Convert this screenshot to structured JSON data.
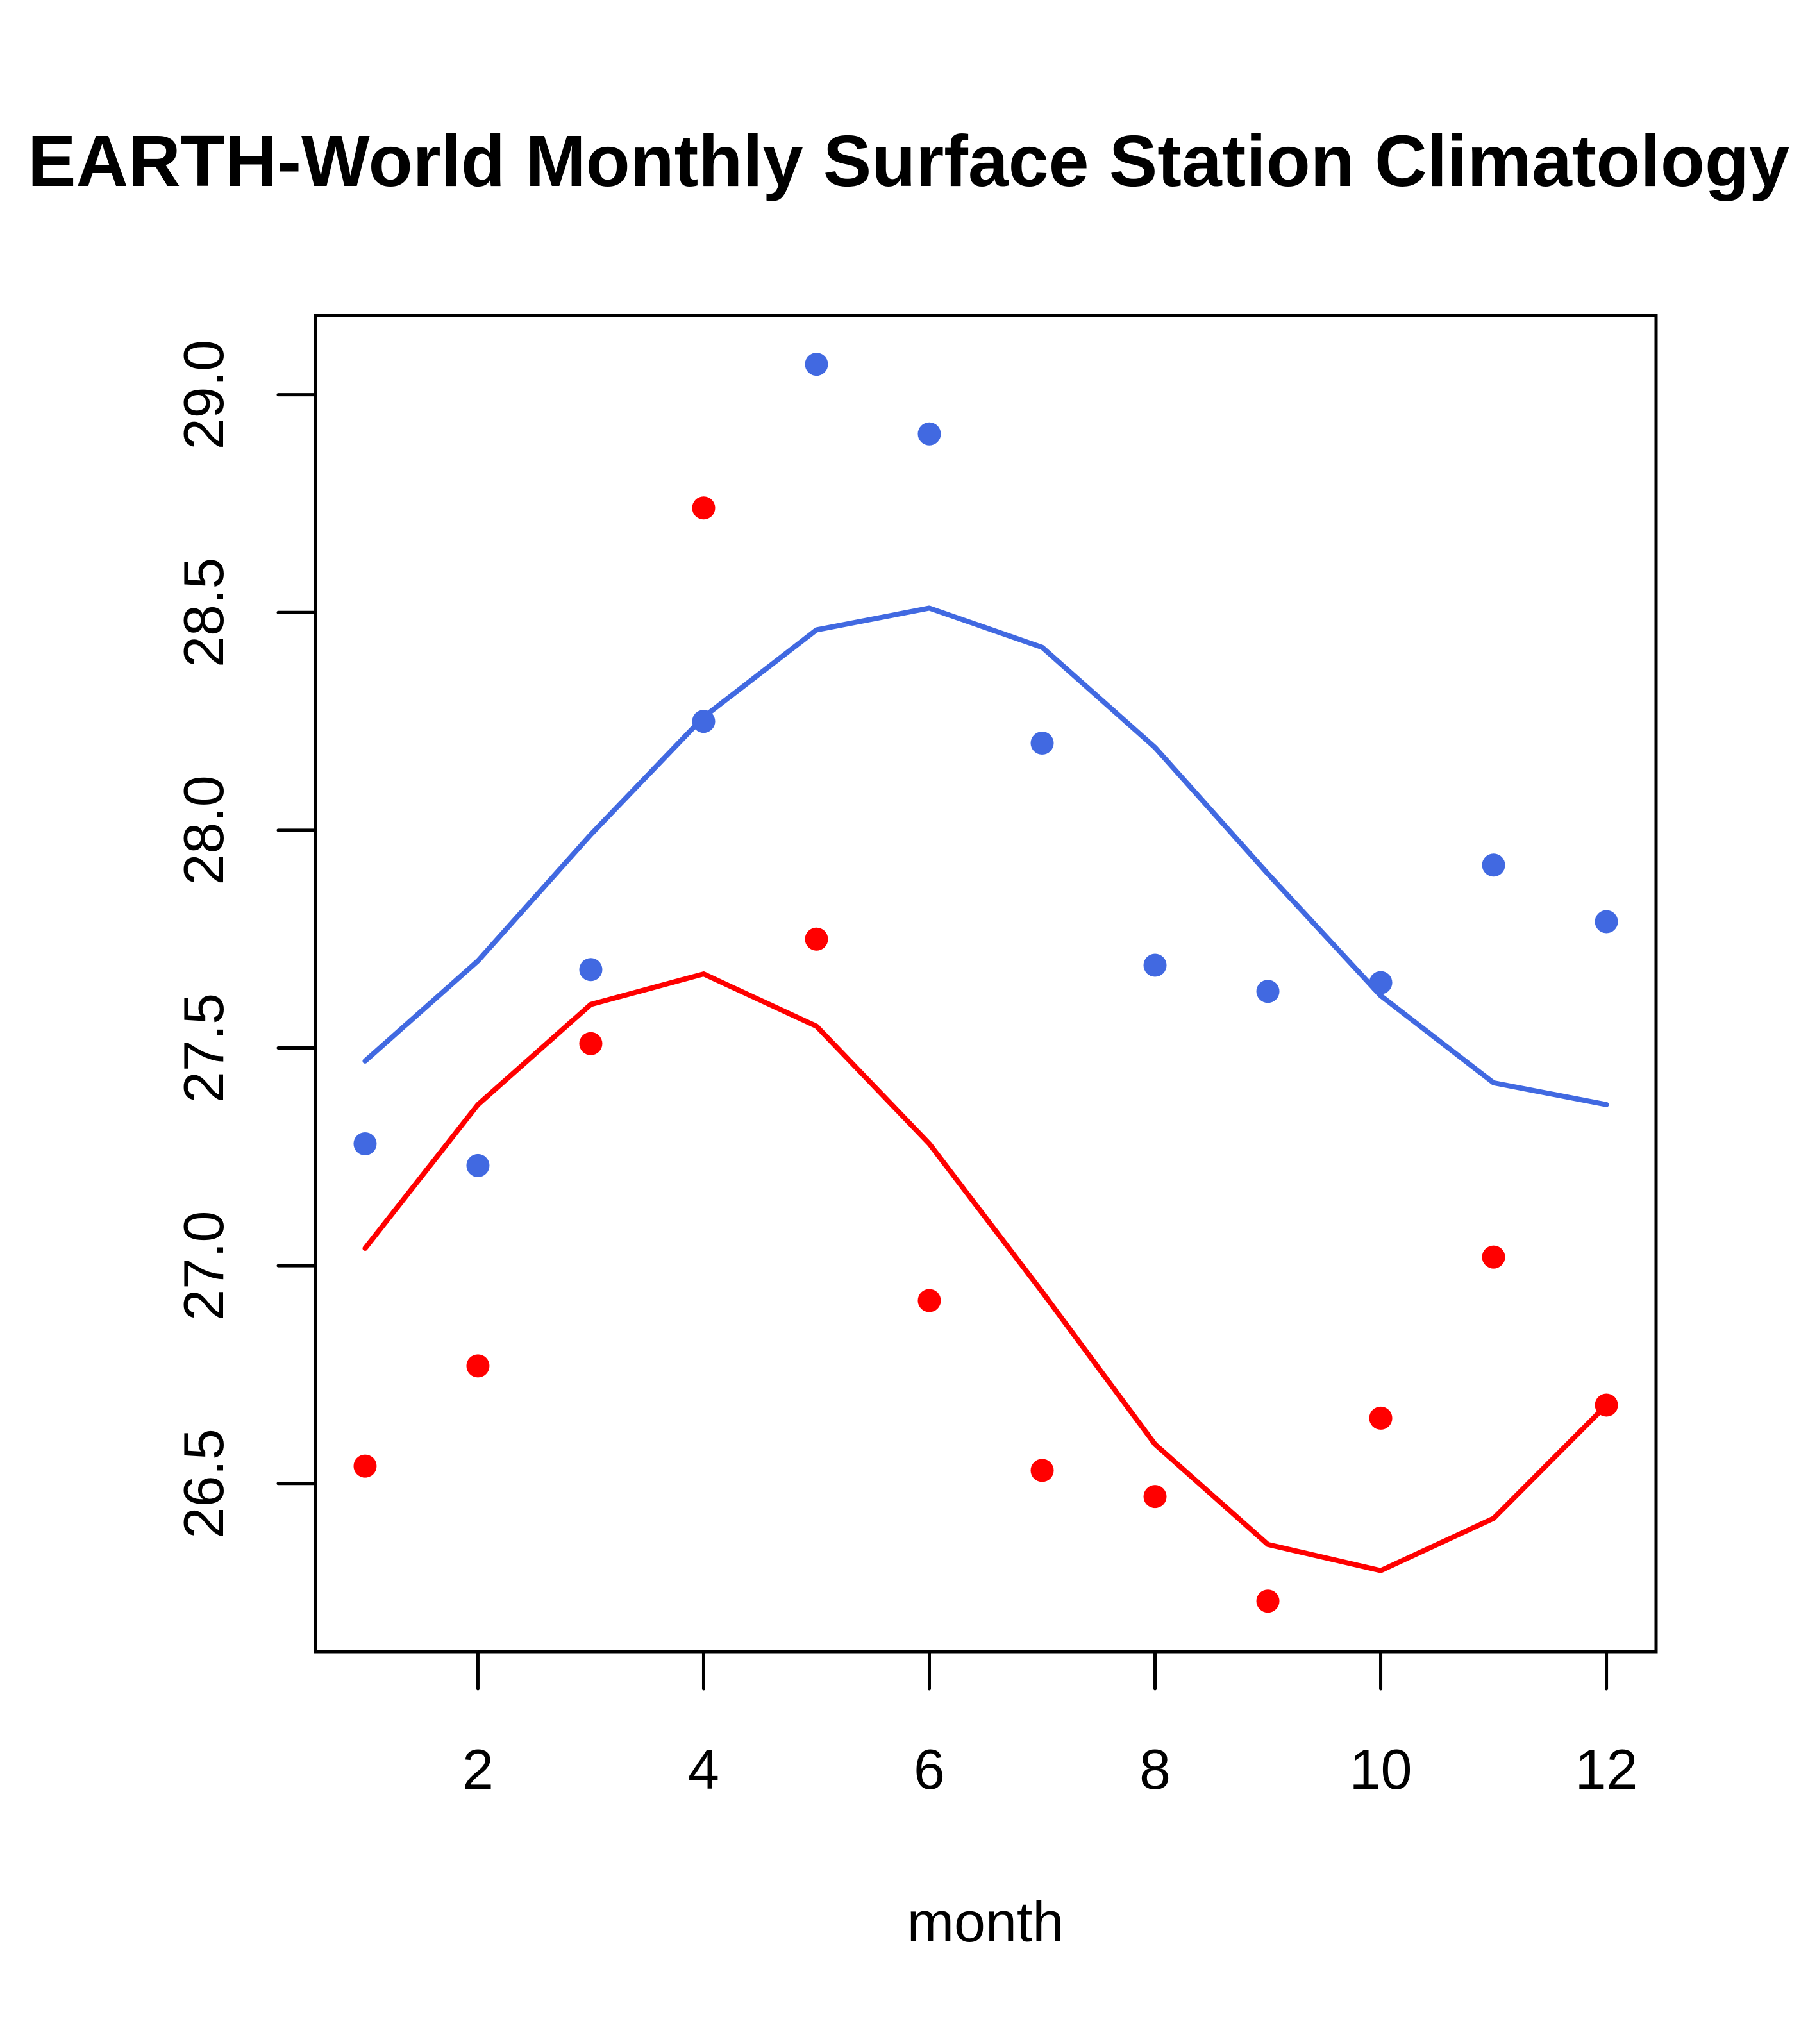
{
  "chart_data": {
    "type": "scatter",
    "title": "EARTH-World Monthly Surface Station Climatology",
    "xlabel": "month",
    "ylabel": "",
    "xlim": [
      0.56,
      12.44
    ],
    "ylim": [
      26.114,
      29.182
    ],
    "x_ticks": [
      2,
      4,
      6,
      8,
      10,
      12
    ],
    "x_tick_labels": [
      "2",
      "4",
      "6",
      "8",
      "10",
      "12"
    ],
    "y_ticks": [
      26.5,
      27.0,
      27.5,
      28.0,
      28.5,
      29.0
    ],
    "y_tick_labels": [
      "26.5",
      "27.0",
      "27.5",
      "28.0",
      "28.5",
      "29.0"
    ],
    "grid": false,
    "legend": "none",
    "x": [
      1,
      2,
      3,
      4,
      5,
      6,
      7,
      8,
      9,
      10,
      11,
      12
    ],
    "series": [
      {
        "name": "blue-points",
        "kind": "points",
        "color": "#4169E1",
        "values": [
          27.28,
          27.23,
          27.68,
          28.25,
          29.07,
          28.91,
          28.2,
          27.69,
          27.63,
          27.65,
          27.92,
          27.79
        ]
      },
      {
        "name": "blue-line",
        "kind": "line",
        "color": "#4169E1",
        "values": [
          27.47,
          27.7,
          27.99,
          28.26,
          28.46,
          28.51,
          28.42,
          28.19,
          27.9,
          27.62,
          27.42,
          27.37
        ]
      },
      {
        "name": "red-points",
        "kind": "points",
        "color": "#FF0000",
        "values": [
          26.54,
          26.77,
          27.51,
          28.74,
          27.75,
          26.92,
          26.53,
          26.47,
          26.23,
          26.65,
          27.02,
          26.68
        ]
      },
      {
        "name": "red-line",
        "kind": "line",
        "color": "#FF0000",
        "values": [
          27.04,
          27.37,
          27.6,
          27.67,
          27.55,
          27.28,
          26.94,
          26.59,
          26.36,
          26.3,
          26.42,
          26.68
        ]
      }
    ]
  }
}
